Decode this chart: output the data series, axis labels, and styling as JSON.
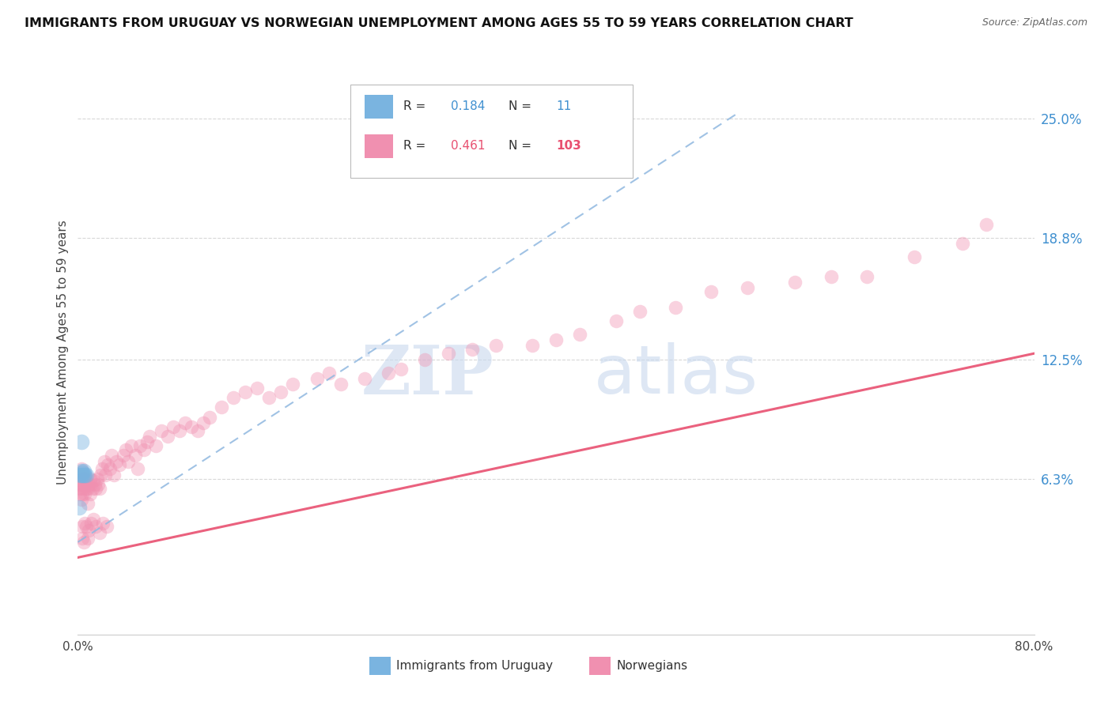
{
  "title": "IMMIGRANTS FROM URUGUAY VS NORWEGIAN UNEMPLOYMENT AMONG AGES 55 TO 59 YEARS CORRELATION CHART",
  "source": "Source: ZipAtlas.com",
  "ylabel": "Unemployment Among Ages 55 to 59 years",
  "xmin": 0.0,
  "xmax": 0.8,
  "ymin": -0.018,
  "ymax": 0.275,
  "yticks": [
    0.063,
    0.125,
    0.188,
    0.25
  ],
  "ytick_labels": [
    "6.3%",
    "12.5%",
    "18.8%",
    "25.0%"
  ],
  "xticks": [
    0.0,
    0.1,
    0.2,
    0.3,
    0.4,
    0.5,
    0.6,
    0.7,
    0.8
  ],
  "xtick_labels": [
    "0.0%",
    "",
    "",
    "",
    "",
    "",
    "",
    "",
    "80.0%"
  ],
  "blue_scatter_x": [
    0.002,
    0.003,
    0.003,
    0.004,
    0.004,
    0.005,
    0.005,
    0.006,
    0.007,
    0.001,
    0.003
  ],
  "blue_scatter_y": [
    0.065,
    0.065,
    0.067,
    0.065,
    0.066,
    0.065,
    0.067,
    0.065,
    0.065,
    0.048,
    0.082
  ],
  "blue_trend_x": [
    0.0,
    0.55
  ],
  "blue_trend_y": [
    0.03,
    0.252
  ],
  "pink_trend_x": [
    0.0,
    0.8
  ],
  "pink_trend_y": [
    0.022,
    0.128
  ],
  "pink_scatter_x": [
    0.001,
    0.001,
    0.002,
    0.002,
    0.002,
    0.003,
    0.003,
    0.003,
    0.004,
    0.004,
    0.005,
    0.005,
    0.006,
    0.006,
    0.007,
    0.007,
    0.008,
    0.008,
    0.009,
    0.01,
    0.01,
    0.011,
    0.012,
    0.013,
    0.014,
    0.015,
    0.016,
    0.017,
    0.018,
    0.019,
    0.02,
    0.022,
    0.023,
    0.025,
    0.027,
    0.028,
    0.03,
    0.032,
    0.035,
    0.038,
    0.04,
    0.042,
    0.045,
    0.048,
    0.05,
    0.052,
    0.055,
    0.058,
    0.06,
    0.065,
    0.07,
    0.075,
    0.08,
    0.085,
    0.09,
    0.095,
    0.1,
    0.105,
    0.11,
    0.12,
    0.13,
    0.14,
    0.15,
    0.16,
    0.17,
    0.18,
    0.2,
    0.21,
    0.22,
    0.24,
    0.26,
    0.27,
    0.29,
    0.31,
    0.33,
    0.35,
    0.38,
    0.4,
    0.42,
    0.45,
    0.47,
    0.5,
    0.53,
    0.56,
    0.6,
    0.63,
    0.66,
    0.7,
    0.74,
    0.76,
    0.004,
    0.004,
    0.005,
    0.006,
    0.007,
    0.008,
    0.009,
    0.011,
    0.013,
    0.015,
    0.018,
    0.021,
    0.024
  ],
  "pink_scatter_y": [
    0.065,
    0.06,
    0.058,
    0.062,
    0.055,
    0.068,
    0.058,
    0.052,
    0.06,
    0.055,
    0.063,
    0.058,
    0.06,
    0.055,
    0.058,
    0.063,
    0.058,
    0.05,
    0.06,
    0.055,
    0.063,
    0.06,
    0.058,
    0.062,
    0.06,
    0.058,
    0.063,
    0.06,
    0.058,
    0.065,
    0.068,
    0.072,
    0.065,
    0.07,
    0.068,
    0.075,
    0.065,
    0.072,
    0.07,
    0.075,
    0.078,
    0.072,
    0.08,
    0.075,
    0.068,
    0.08,
    0.078,
    0.082,
    0.085,
    0.08,
    0.088,
    0.085,
    0.09,
    0.088,
    0.092,
    0.09,
    0.088,
    0.092,
    0.095,
    0.1,
    0.105,
    0.108,
    0.11,
    0.105,
    0.108,
    0.112,
    0.115,
    0.118,
    0.112,
    0.115,
    0.118,
    0.12,
    0.125,
    0.128,
    0.13,
    0.132,
    0.132,
    0.135,
    0.138,
    0.145,
    0.15,
    0.152,
    0.16,
    0.162,
    0.165,
    0.168,
    0.168,
    0.178,
    0.185,
    0.195,
    0.038,
    0.032,
    0.03,
    0.04,
    0.038,
    0.032,
    0.036,
    0.04,
    0.042,
    0.038,
    0.035,
    0.04,
    0.038
  ],
  "watermark_zip": "ZIP",
  "watermark_atlas": "atlas",
  "background_color": "#ffffff",
  "dot_size_blue": 200,
  "dot_size_pink": 160,
  "dot_alpha_blue": 0.45,
  "dot_alpha_pink": 0.4,
  "blue_color": "#7ab4e0",
  "pink_color": "#f090b0",
  "blue_line_color": "#90b8e0",
  "pink_line_color": "#e85070",
  "right_axis_color": "#4090d0",
  "grid_color": "#d8d8d8",
  "legend_R1": "0.184",
  "legend_N1": "11",
  "legend_R2": "0.461",
  "legend_N2": "103",
  "legend_color1": "#7ab4e0",
  "legend_color2": "#f090b0",
  "legend_val_color1": "#4090d0",
  "legend_val_color2": "#e85070"
}
